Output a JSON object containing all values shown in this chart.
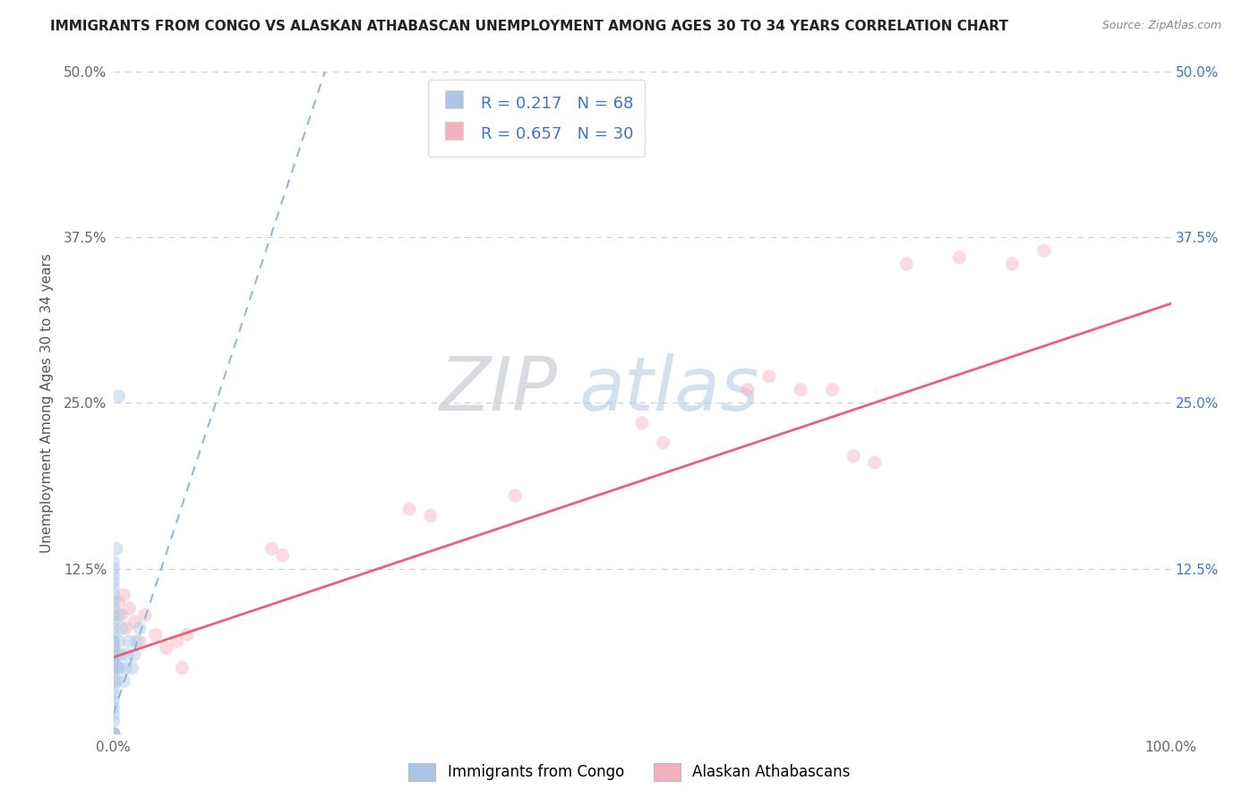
{
  "title": "IMMIGRANTS FROM CONGO VS ALASKAN ATHABASCAN UNEMPLOYMENT AMONG AGES 30 TO 34 YEARS CORRELATION CHART",
  "source": "Source: ZipAtlas.com",
  "ylabel": "Unemployment Among Ages 30 to 34 years",
  "xlim": [
    0,
    1.0
  ],
  "ylim": [
    0,
    0.5
  ],
  "xticks": [
    0.0,
    1.0
  ],
  "xticklabels": [
    "0.0%",
    "100.0%"
  ],
  "yticks": [
    0.0,
    0.125,
    0.25,
    0.375,
    0.5
  ],
  "yticklabels_left": [
    "",
    "12.5%",
    "25.0%",
    "37.5%",
    "50.0%"
  ],
  "yticklabels_right": [
    "",
    "12.5%",
    "25.0%",
    "37.5%",
    "50.0%"
  ],
  "R_congo": 0.217,
  "N_congo": 68,
  "R_athabascan": 0.657,
  "N_athabascan": 30,
  "congo_color": "#adc6e8",
  "athabascan_color": "#f5b0c0",
  "congo_line_color": "#90b8d8",
  "athabascan_line_color": "#e8607a",
  "legend_labels": [
    "Immigrants from Congo",
    "Alaskan Athabascans"
  ],
  "watermark_zip": "ZIP",
  "watermark_atlas": "atlas",
  "grid_color": "#d0d0d0",
  "bg_color": "#ffffff",
  "dot_size": 120,
  "dot_alpha": 0.45,
  "title_fontsize": 11,
  "axis_label_fontsize": 11,
  "tick_fontsize": 11,
  "legend_fontsize": 13,
  "congo_x": [
    0.0,
    0.0,
    0.0,
    0.0,
    0.0,
    0.0,
    0.0,
    0.0,
    0.0,
    0.0,
    0.0,
    0.0,
    0.0,
    0.0,
    0.0,
    0.0,
    0.0,
    0.0,
    0.0,
    0.0,
    0.0,
    0.0,
    0.0,
    0.0,
    0.0,
    0.0,
    0.0,
    0.0,
    0.0,
    0.0,
    0.0,
    0.0,
    0.0,
    0.0,
    0.0,
    0.0,
    0.0,
    0.0,
    0.0,
    0.0,
    0.0,
    0.0,
    0.0,
    0.0,
    0.0,
    0.0,
    0.0,
    0.0,
    0.0,
    0.0,
    0.003,
    0.003,
    0.004,
    0.005,
    0.005,
    0.006,
    0.007,
    0.008,
    0.01,
    0.012,
    0.013,
    0.015,
    0.018,
    0.02,
    0.022,
    0.025,
    0.003,
    0.005
  ],
  "congo_y": [
    0.0,
    0.0,
    0.0,
    0.0,
    0.0,
    0.0,
    0.0,
    0.0,
    0.0,
    0.0,
    0.0,
    0.0,
    0.0,
    0.0,
    0.0,
    0.0,
    0.0,
    0.0,
    0.0,
    0.0,
    0.02,
    0.025,
    0.03,
    0.035,
    0.04,
    0.05,
    0.055,
    0.06,
    0.065,
    0.07,
    0.075,
    0.08,
    0.085,
    0.09,
    0.095,
    0.1,
    0.105,
    0.11,
    0.115,
    0.12,
    0.125,
    0.13,
    0.01,
    0.015,
    0.045,
    0.05,
    0.055,
    0.06,
    0.065,
    0.07,
    0.04,
    0.06,
    0.05,
    0.07,
    0.09,
    0.05,
    0.06,
    0.08,
    0.04,
    0.05,
    0.06,
    0.07,
    0.05,
    0.06,
    0.07,
    0.08,
    0.14,
    0.255
  ],
  "athabascan_x": [
    0.005,
    0.008,
    0.01,
    0.012,
    0.015,
    0.02,
    0.025,
    0.03,
    0.04,
    0.05,
    0.06,
    0.065,
    0.07,
    0.15,
    0.16,
    0.28,
    0.3,
    0.38,
    0.5,
    0.52,
    0.6,
    0.62,
    0.65,
    0.68,
    0.7,
    0.72,
    0.75,
    0.8,
    0.85,
    0.88
  ],
  "athabascan_y": [
    0.1,
    0.09,
    0.105,
    0.08,
    0.095,
    0.085,
    0.07,
    0.09,
    0.075,
    0.065,
    0.07,
    0.05,
    0.075,
    0.14,
    0.135,
    0.17,
    0.165,
    0.18,
    0.235,
    0.22,
    0.26,
    0.27,
    0.26,
    0.26,
    0.21,
    0.205,
    0.355,
    0.36,
    0.355,
    0.365
  ],
  "congo_trend_x": [
    0.0,
    0.2
  ],
  "congo_trend_y": [
    0.015,
    0.5
  ],
  "atha_trend_x": [
    0.0,
    1.0
  ],
  "atha_trend_y": [
    0.058,
    0.325
  ]
}
